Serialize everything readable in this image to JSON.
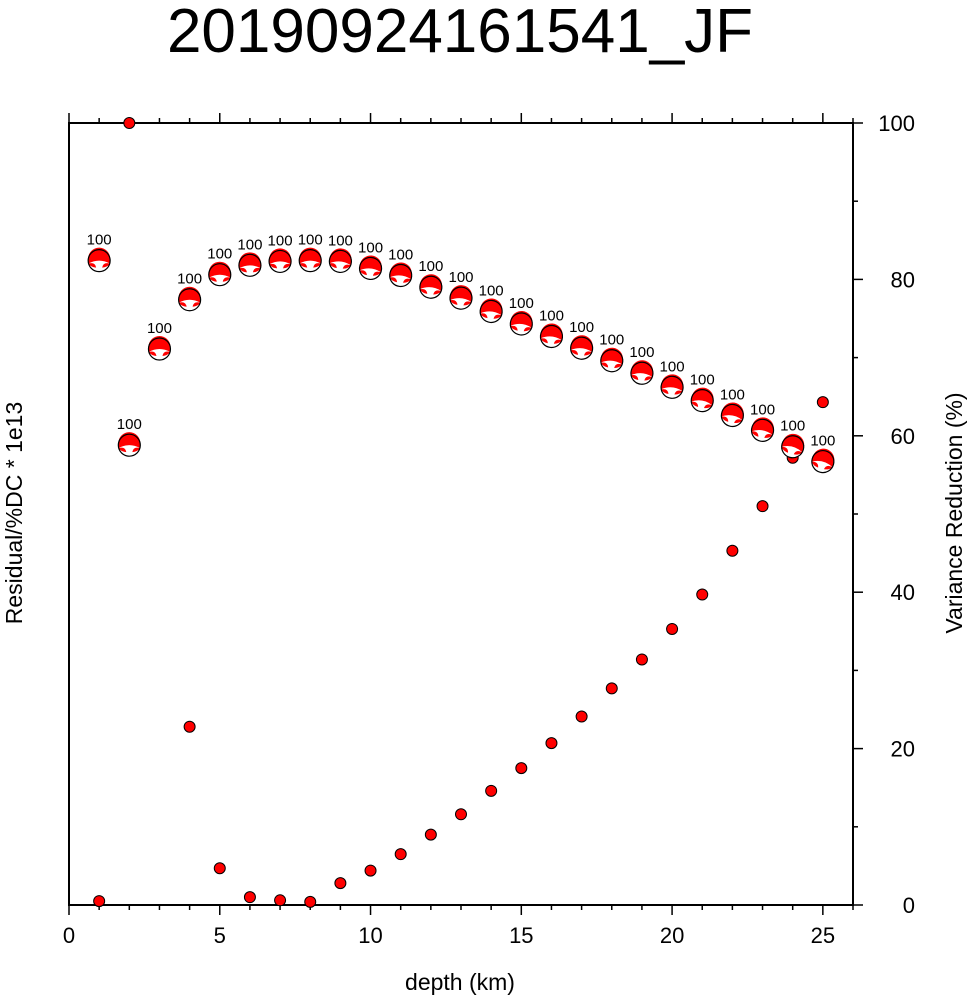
{
  "chart_data": {
    "type": "scatter",
    "title": "20190924161541_JF",
    "xlabel": "depth (km)",
    "ylabel_left": "Residual/%DC * 1e13",
    "ylabel_right": "Variance Reduction (%)",
    "xlim": [
      0,
      26
    ],
    "right_ylim": [
      0,
      100
    ],
    "x_ticks": [
      0,
      5,
      10,
      15,
      20,
      25
    ],
    "right_y_ticks": [
      0,
      20,
      40,
      60,
      80,
      100
    ],
    "colors": {
      "fill": "#ff0000",
      "stroke": "#000000",
      "axis": "#000000",
      "beach_white": "#ffffff"
    },
    "residual_series": {
      "name": "",
      "x": [
        1,
        2,
        4,
        5,
        6,
        7,
        8,
        9,
        10,
        11,
        12,
        13,
        14,
        15,
        16,
        17,
        18,
        19,
        20,
        21,
        22,
        23,
        24,
        25
      ],
      "values_on_right_axis": [
        0.5,
        100,
        22.8,
        4.7,
        1.0,
        0.6,
        0.4,
        2.8,
        4.4,
        6.5,
        9.0,
        11.6,
        14.6,
        17.5,
        20.7,
        24.1,
        27.7,
        31.4,
        35.3,
        39.7,
        45.3,
        51.0,
        57.2,
        64.3
      ]
    },
    "vr_series": {
      "name": "",
      "depths": [
        1,
        2,
        3,
        4,
        5,
        6,
        7,
        8,
        9,
        10,
        11,
        12,
        13,
        14,
        15,
        16,
        17,
        18,
        19,
        20,
        21,
        22,
        23,
        24,
        25
      ],
      "vr_percent": [
        82.4,
        58.8,
        71.1,
        77.4,
        80.6,
        81.8,
        82.3,
        82.4,
        82.3,
        81.4,
        80.5,
        79.0,
        77.6,
        75.9,
        74.3,
        72.7,
        71.2,
        69.6,
        68.0,
        66.2,
        64.5,
        62.6,
        60.7,
        58.6,
        56.7
      ],
      "labels": [
        "100",
        "100",
        "100",
        "100",
        "100",
        "100",
        "100",
        "100",
        "100",
        "100",
        "100",
        "100",
        "100",
        "100",
        "100",
        "100",
        "100",
        "100",
        "100",
        "100",
        "100",
        "100",
        "100",
        "100",
        "100"
      ],
      "rotation_deg": [
        0,
        0,
        0,
        0,
        0,
        0,
        0,
        0,
        5,
        5,
        5,
        5,
        5,
        5,
        5,
        5,
        5,
        5,
        5,
        5,
        10,
        10,
        10,
        15,
        15
      ]
    }
  }
}
